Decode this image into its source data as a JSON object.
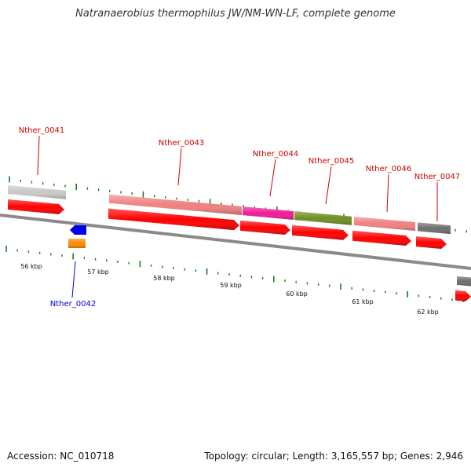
{
  "title": "Natranaerobius thermophilus JW/NM-WN-LF, complete genome",
  "footer": {
    "accession": "Accession: NC_010718",
    "summary": "Topology: circular; Length: 3,165,557 bp; Genes: 2,946"
  },
  "colors": {
    "backbone": "#8a8a8a",
    "tick": "#1e7a1e",
    "cds": "#ff0000",
    "forward_label": "#cc0000",
    "reverse_label": "#0000cc",
    "reverse_gene": "#0000ee",
    "reverse_feature": "#ff8800"
  },
  "kbp_labels": [
    "56 kbp",
    "57 kbp",
    "58 kbp",
    "59 kbp",
    "60 kbp",
    "61 kbp",
    "62 kbp"
  ],
  "genes": [
    {
      "label": "Nther_0041",
      "strand": "forward",
      "feature_color": "#c8c8c8"
    },
    {
      "label": "Nther_0042",
      "strand": "reverse",
      "feature_color": "#ff8800"
    },
    {
      "label": "Nther_0043",
      "strand": "forward",
      "feature_color": "#ef8080"
    },
    {
      "label": "Nther_0044",
      "strand": "forward",
      "feature_color": "#ee1b9a"
    },
    {
      "label": "Nther_0045",
      "strand": "forward",
      "feature_color": "#6e8e22"
    },
    {
      "label": "Nther_0046",
      "strand": "forward",
      "feature_color": "#ef8080"
    },
    {
      "label": "Nther_0047",
      "strand": "forward",
      "feature_color": "#6e6e6e"
    }
  ]
}
